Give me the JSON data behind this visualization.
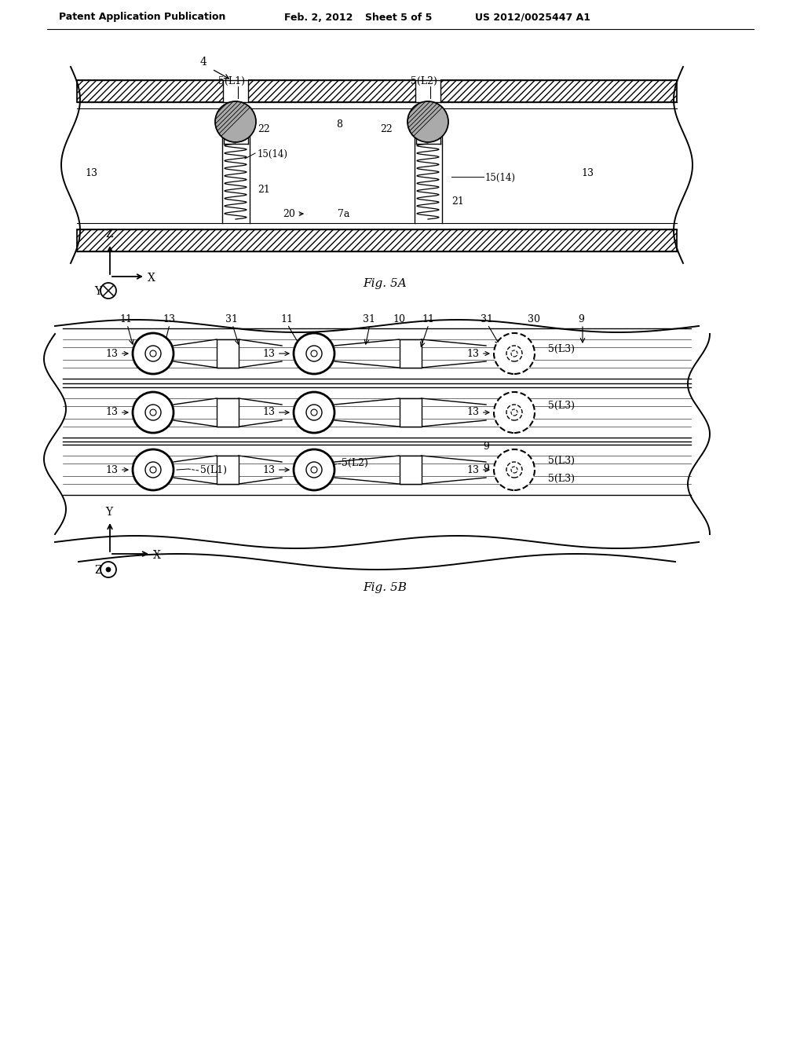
{
  "background_color": "#ffffff",
  "header_text": "Patent Application Publication",
  "header_date": "Feb. 2, 2012",
  "header_sheet": "Sheet 5 of 5",
  "header_patent": "US 2012/0025447 A1",
  "fig5a_label": "Fig. 5A",
  "fig5b_label": "Fig. 5B"
}
